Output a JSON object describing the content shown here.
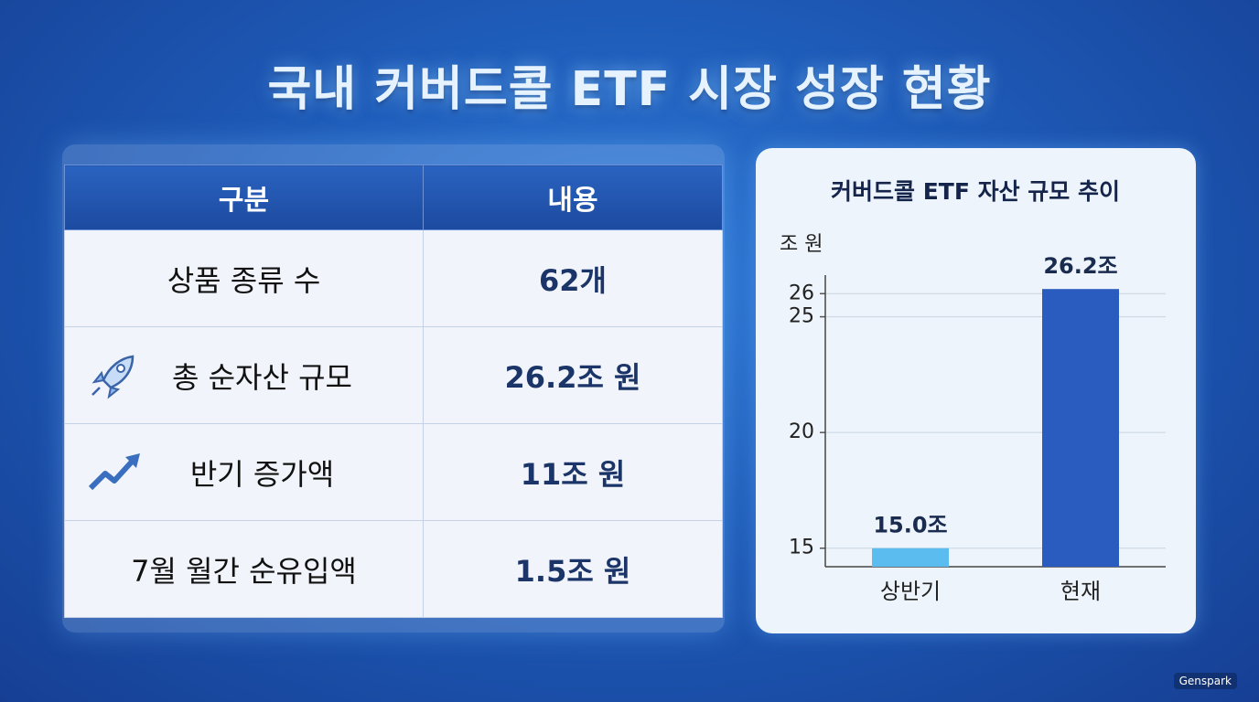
{
  "header": {
    "title": "국내 커버드콜 ETF 시장 성장 현황"
  },
  "table": {
    "headers": [
      "구분",
      "내용"
    ],
    "rows": [
      [
        "상품 종류 수",
        "62개"
      ],
      [
        "총 순자산 규모",
        "26.2조 원"
      ],
      [
        "반기 증가액",
        "11조 원"
      ],
      [
        "7월 월간 순유입액",
        "1.5조 원"
      ]
    ]
  },
  "chart_data": {
    "type": "bar",
    "title": "커버드콜 ETF 자산 규모 추이",
    "y_label": "조 원",
    "categories": [
      "상반기",
      "현재"
    ],
    "values": [
      15.0,
      26.2
    ],
    "value_labels": [
      "15.0조",
      "26.2조"
    ],
    "colors": [
      "#5bbcf0",
      "#2a5cbf"
    ],
    "ylim": [
      14.2,
      26.8
    ],
    "yticks": [
      15,
      20,
      25,
      26
    ],
    "grid": true
  },
  "footer": {
    "watermark": "Genspark"
  }
}
